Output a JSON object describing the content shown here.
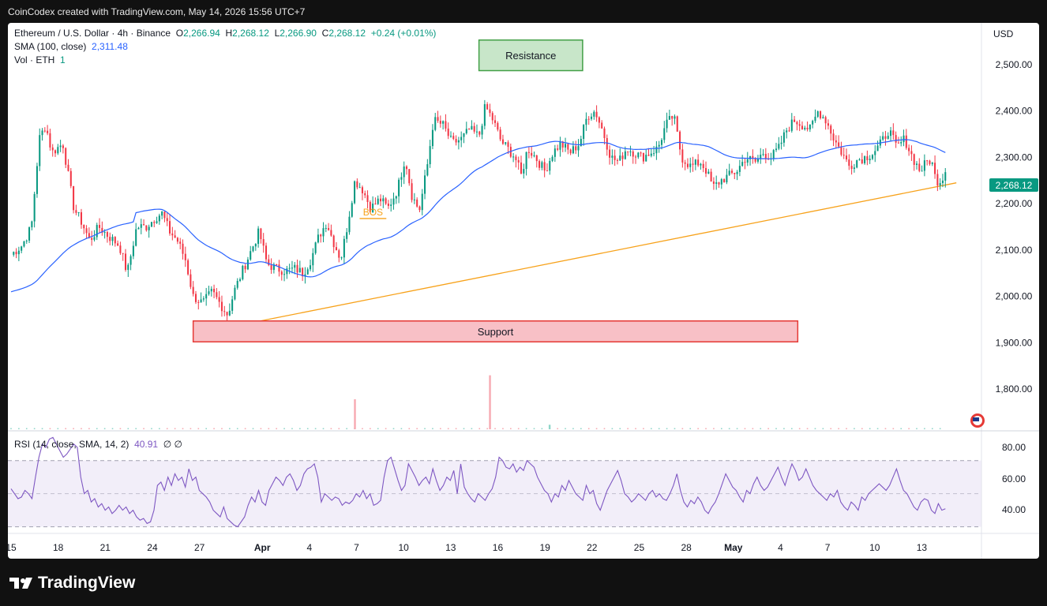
{
  "header": {
    "caption": "CoinCodex created with TradingView.com, May 14, 2026 15:56 UTC+7"
  },
  "legend": {
    "symbol": "Ethereum / U.S. Dollar · 4h · Binance",
    "o_label": "O",
    "o": "2,266.94",
    "h_label": "H",
    "h": "2,268.12",
    "l_label": "L",
    "l": "2,266.90",
    "c_label": "C",
    "c": "2,268.12",
    "change": "+0.24 (+0.01%)",
    "sma_label": "SMA (100, close)",
    "sma_value": "2,311.48",
    "vol_label": "Vol · ETH",
    "vol_value": "1",
    "rsi_label": "RSI (14, close, SMA, 14, 2)",
    "rsi_value": "40.91",
    "rsi_extra": "∅ ∅"
  },
  "currency": "USD",
  "price_badge": "2,268.12",
  "footer": {
    "brand": "TradingView",
    "logo_icon": "tradingview-logo-icon"
  },
  "colors": {
    "up": "#089981",
    "down": "#f23645",
    "sma": "#2962ff",
    "trend": "#f7a21b",
    "rsi": "#7e57c2",
    "resistance_fill": "#c8e6c9",
    "resistance_border": "#43a047",
    "support_fill": "#f8c0c6",
    "support_border": "#e53935"
  },
  "chart_data": [
    {
      "type": "candlestick",
      "title": "Ethereum / U.S. Dollar · 4h · Binance",
      "ylim": [
        1710,
        2590
      ],
      "y_ticks": [
        "2,500.00",
        "2,400.00",
        "2,300.00",
        "2,200.00",
        "2,100.00",
        "2,000.00",
        "1,900.00",
        "1,800.00"
      ],
      "y_tick_values": [
        2500,
        2400,
        2300,
        2200,
        2100,
        2000,
        1900,
        1800
      ],
      "x_ticks": [
        "15",
        "18",
        "21",
        "24",
        "27",
        "Apr",
        "4",
        "7",
        "10",
        "13",
        "16",
        "19",
        "22",
        "25",
        "28",
        "May",
        "4",
        "7",
        "10",
        "13"
      ],
      "x_tick_days": [
        0,
        3,
        6,
        9,
        12,
        16,
        19,
        22,
        25,
        28,
        31,
        34,
        37,
        40,
        43,
        46,
        49,
        52,
        55,
        58
      ],
      "anchors": [
        [
          0,
          2090
        ],
        [
          0.7,
          2110
        ],
        [
          1.3,
          2150
        ],
        [
          1.8,
          2340
        ],
        [
          2.2,
          2370
        ],
        [
          2.6,
          2310
        ],
        [
          3.3,
          2330
        ],
        [
          4.0,
          2190
        ],
        [
          4.5,
          2160
        ],
        [
          5.0,
          2120
        ],
        [
          5.6,
          2150
        ],
        [
          6.2,
          2130
        ],
        [
          6.9,
          2110
        ],
        [
          7.4,
          2050
        ],
        [
          8.0,
          2150
        ],
        [
          8.6,
          2150
        ],
        [
          9.2,
          2170
        ],
        [
          9.6,
          2180
        ],
        [
          10.1,
          2140
        ],
        [
          10.6,
          2120
        ],
        [
          11.1,
          2080
        ],
        [
          11.6,
          2000
        ],
        [
          12.2,
          1985
        ],
        [
          12.8,
          2010
        ],
        [
          13.3,
          1985
        ],
        [
          13.8,
          1960
        ],
        [
          14.2,
          2010
        ],
        [
          14.8,
          2060
        ],
        [
          15.3,
          2100
        ],
        [
          15.8,
          2140
        ],
        [
          16.3,
          2070
        ],
        [
          16.9,
          2060
        ],
        [
          17.5,
          2055
        ],
        [
          18.1,
          2060
        ],
        [
          18.6,
          2050
        ],
        [
          19.1,
          2080
        ],
        [
          19.6,
          2130
        ],
        [
          20.1,
          2160
        ],
        [
          20.5,
          2120
        ],
        [
          21.0,
          2080
        ],
        [
          21.4,
          2150
        ],
        [
          21.9,
          2250
        ],
        [
          22.4,
          2230
        ],
        [
          22.9,
          2190
        ],
        [
          23.5,
          2210
        ],
        [
          24.0,
          2190
        ],
        [
          24.6,
          2230
        ],
        [
          25.1,
          2300
        ],
        [
          25.5,
          2220
        ],
        [
          26.0,
          2185
        ],
        [
          26.5,
          2280
        ],
        [
          26.9,
          2380
        ],
        [
          27.5,
          2370
        ],
        [
          28.1,
          2330
        ],
        [
          28.7,
          2340
        ],
        [
          29.2,
          2360
        ],
        [
          29.8,
          2345
        ],
        [
          30.2,
          2410
        ],
        [
          30.7,
          2380
        ],
        [
          31.2,
          2335
        ],
        [
          31.6,
          2320
        ],
        [
          32.1,
          2300
        ],
        [
          32.5,
          2260
        ],
        [
          32.9,
          2320
        ],
        [
          33.4,
          2300
        ],
        [
          34.0,
          2270
        ],
        [
          34.5,
          2310
        ],
        [
          35.0,
          2330
        ],
        [
          35.6,
          2310
        ],
        [
          36.2,
          2330
        ],
        [
          36.7,
          2390
        ],
        [
          37.2,
          2400
        ],
        [
          37.7,
          2355
        ],
        [
          38.2,
          2300
        ],
        [
          38.7,
          2290
        ],
        [
          39.2,
          2320
        ],
        [
          39.7,
          2310
        ],
        [
          40.2,
          2300
        ],
        [
          40.7,
          2310
        ],
        [
          41.2,
          2320
        ],
        [
          41.7,
          2370
        ],
        [
          42.2,
          2390
        ],
        [
          42.7,
          2300
        ],
        [
          43.3,
          2280
        ],
        [
          43.9,
          2290
        ],
        [
          44.3,
          2270
        ],
        [
          44.7,
          2235
        ],
        [
          45.2,
          2250
        ],
        [
          45.7,
          2260
        ],
        [
          46.2,
          2270
        ],
        [
          46.8,
          2300
        ],
        [
          47.4,
          2290
        ],
        [
          47.9,
          2310
        ],
        [
          48.4,
          2300
        ],
        [
          48.9,
          2320
        ],
        [
          49.4,
          2360
        ],
        [
          49.9,
          2380
        ],
        [
          50.4,
          2370
        ],
        [
          50.9,
          2360
        ],
        [
          51.4,
          2400
        ],
        [
          51.9,
          2380
        ],
        [
          52.4,
          2340
        ],
        [
          52.9,
          2310
        ],
        [
          53.4,
          2280
        ],
        [
          53.9,
          2295
        ],
        [
          54.4,
          2300
        ],
        [
          54.9,
          2310
        ],
        [
          55.4,
          2330
        ],
        [
          55.9,
          2360
        ],
        [
          56.4,
          2320
        ],
        [
          56.9,
          2340
        ],
        [
          57.4,
          2300
        ],
        [
          57.9,
          2270
        ],
        [
          58.3,
          2290
        ],
        [
          58.6,
          2295
        ],
        [
          58.9,
          2250
        ],
        [
          59.2,
          2250
        ],
        [
          59.5,
          2268
        ]
      ],
      "annotations": [
        {
          "label": "Resistance",
          "kind": "box",
          "y_range": [
            2487,
            2553
          ],
          "x_range": [
            29.8,
            36.4
          ]
        },
        {
          "label": "Support",
          "kind": "box",
          "y_range": [
            1902,
            1947
          ],
          "x_range": [
            11.6,
            50.1
          ]
        },
        {
          "label": "BOS",
          "kind": "line",
          "y": 2168,
          "x_range": [
            22.2,
            23.9
          ]
        }
      ],
      "trend_line": {
        "start": [
          12.6,
          1925
        ],
        "end": [
          60.2,
          2245
        ]
      },
      "sma": {
        "name": "SMA (100, close)",
        "value": "2,311.48"
      },
      "volume": {
        "name": "Vol · ETH",
        "value": "1",
        "spikes": [
          [
            21.9,
            1
          ],
          [
            30.5,
            1.8
          ],
          [
            34.3,
            0.15
          ]
        ]
      }
    },
    {
      "type": "line",
      "title": "RSI (14, close, SMA, 14, 2)",
      "ylim": [
        26,
        88
      ],
      "y_ticks": [
        "80.00",
        "60.00",
        "40.00"
      ],
      "y_tick_values": [
        80,
        60,
        40
      ],
      "band": [
        30,
        70
      ],
      "midline": 50,
      "series": [
        {
          "name": "RSI",
          "values": [
            53,
            50,
            47,
            48,
            52,
            50,
            47,
            60,
            72,
            80,
            78,
            83,
            84,
            80,
            76,
            72,
            74,
            77,
            80,
            78,
            60,
            50,
            52,
            45,
            47,
            42,
            44,
            40,
            42,
            38,
            40,
            43,
            40,
            42,
            38,
            40,
            36,
            34,
            35,
            32,
            33,
            40,
            55,
            57,
            52,
            60,
            55,
            62,
            58,
            60,
            54,
            65,
            58,
            60,
            52,
            50,
            48,
            45,
            40,
            38,
            36,
            42,
            35,
            33,
            31,
            30,
            33,
            36,
            43,
            48,
            45,
            52,
            45,
            43,
            52,
            56,
            60,
            58,
            55,
            60,
            62,
            58,
            52,
            55,
            62,
            65,
            66,
            68,
            60,
            45,
            50,
            48,
            46,
            48,
            47,
            43,
            45,
            44,
            46,
            50,
            48,
            52,
            47,
            50,
            43,
            44,
            46,
            60,
            70,
            72,
            65,
            58,
            52,
            55,
            68,
            64,
            60,
            55,
            58,
            60,
            56,
            65,
            58,
            52,
            55,
            60,
            58,
            64,
            50,
            68,
            54,
            50,
            47,
            45,
            50,
            48,
            46,
            50,
            53,
            60,
            72,
            70,
            66,
            65,
            68,
            63,
            66,
            64,
            70,
            68,
            66,
            60,
            56,
            52,
            50,
            45,
            50,
            48,
            55,
            52,
            58,
            54,
            50,
            48,
            46,
            55,
            50,
            52,
            44,
            40,
            46,
            52,
            56,
            60,
            64,
            58,
            50,
            48,
            45,
            47,
            50,
            48,
            46,
            50,
            52,
            48,
            50,
            47,
            46,
            50,
            55,
            62,
            52,
            45,
            42,
            46,
            44,
            48,
            45,
            40,
            38,
            42,
            45,
            50,
            56,
            62,
            58,
            54,
            52,
            48,
            45,
            52,
            50,
            56,
            60,
            55,
            52,
            54,
            58,
            62,
            66,
            60,
            55,
            62,
            68,
            64,
            58,
            60,
            65,
            60,
            55,
            52,
            50,
            48,
            46,
            50,
            48,
            52,
            45,
            42,
            40,
            45,
            43,
            40,
            48,
            46,
            50,
            52,
            54,
            56,
            54,
            52,
            55,
            60,
            65,
            58,
            52,
            50,
            46,
            42,
            40,
            45,
            47,
            46,
            40,
            38,
            44,
            40,
            40.91
          ]
        }
      ]
    }
  ]
}
